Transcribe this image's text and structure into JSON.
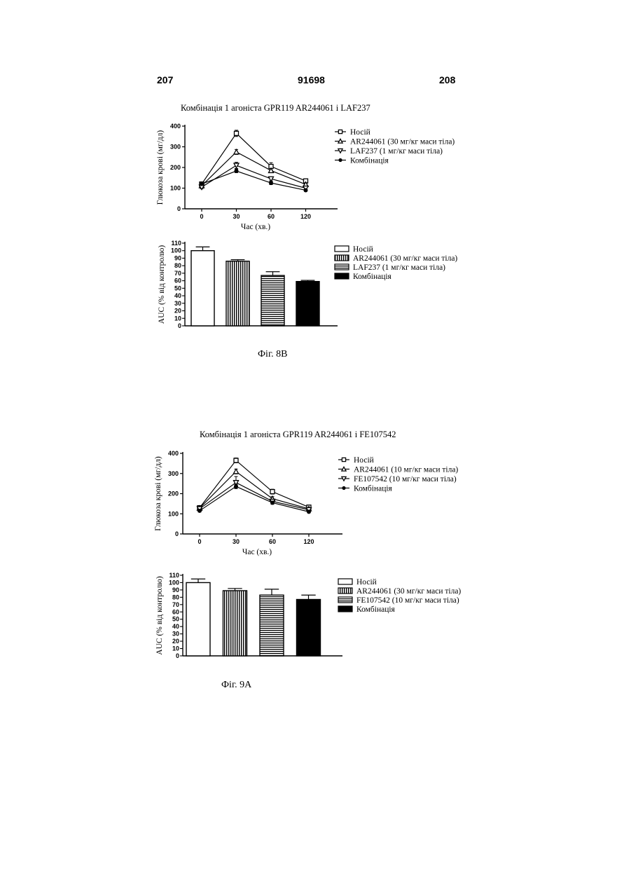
{
  "page_header": {
    "left": "207",
    "center": "91698",
    "right": "208"
  },
  "figures": [
    {
      "title": "Комбінація 1 агоніста GPR119 AR244061 і LAF237",
      "caption": "Фіг. 8B"
    },
    {
      "title": "Комбінація 1 агоніста GPR119 AR244061 і FE107542",
      "caption": "Фіг. 9A"
    }
  ],
  "chart_data": [
    {
      "type": "line",
      "xlabel": "Час (хв.)",
      "ylabel": "Глюкоза крові (мг/дл)",
      "x": [
        "0",
        "30",
        "60",
        "120"
      ],
      "yticks": [
        0,
        100,
        200,
        300,
        400
      ],
      "ylim": [
        0,
        400
      ],
      "legend_position": "right",
      "series": [
        {
          "name": "Носій",
          "marker": "square-open",
          "values": [
            120,
            365,
            205,
            135
          ],
          "errors": [
            8,
            15,
            18,
            8
          ]
        },
        {
          "name": "AR244061 (30 мг/кг маси тіла)",
          "marker": "triangle-up-open",
          "values": [
            112,
            275,
            185,
            118
          ],
          "errors": [
            8,
            12,
            10,
            8
          ]
        },
        {
          "name": "LAF237 (1 мг/кг маси тіла)",
          "marker": "triangle-down-open",
          "values": [
            105,
            210,
            145,
            100
          ],
          "errors": [
            8,
            15,
            10,
            6
          ]
        },
        {
          "name": "Комбінація",
          "marker": "circle-filled",
          "values": [
            120,
            183,
            125,
            90
          ],
          "errors": [
            6,
            8,
            8,
            5
          ]
        }
      ]
    },
    {
      "type": "bar",
      "ylabel": "AUC (% від контролю)",
      "categories": [
        "Носій",
        "AR244061 (30 мг/кг маси тіла)",
        "LAF237 (1 мг/кг маси тіла)",
        "Комбінація"
      ],
      "values": [
        100,
        86,
        67,
        59
      ],
      "errors": [
        5,
        2,
        5,
        1.5
      ],
      "fills": [
        "open",
        "vertical-stripes",
        "horizontal-stripes",
        "solid-black"
      ],
      "yticks": [
        0,
        10,
        20,
        30,
        40,
        50,
        60,
        70,
        80,
        90,
        100,
        110
      ],
      "ylim": [
        0,
        110
      ],
      "legend_position": "right"
    },
    {
      "type": "line",
      "xlabel": "Час (хв.)",
      "ylabel": "Глюкоза крові (мг/дл)",
      "x": [
        "0",
        "30",
        "60",
        "120"
      ],
      "yticks": [
        0,
        100,
        200,
        300,
        400
      ],
      "ylim": [
        0,
        400
      ],
      "legend_position": "right",
      "series": [
        {
          "name": "Носій",
          "marker": "square-open",
          "values": [
            130,
            365,
            210,
            133
          ],
          "errors": [
            8,
            12,
            12,
            6
          ]
        },
        {
          "name": "AR244061 (10 мг/кг маси тіла)",
          "marker": "triangle-up-open",
          "values": [
            128,
            310,
            175,
            125
          ],
          "errors": [
            8,
            12,
            10,
            6
          ]
        },
        {
          "name": "FE107542 (10 мг/кг маси тіла)",
          "marker": "triangle-down-open",
          "values": [
            125,
            255,
            162,
            120
          ],
          "errors": [
            8,
            30,
            10,
            6
          ]
        },
        {
          "name": "Комбінація",
          "marker": "circle-filled",
          "values": [
            115,
            236,
            155,
            110
          ],
          "errors": [
            6,
            10,
            8,
            5
          ]
        }
      ]
    },
    {
      "type": "bar",
      "ylabel": "AUC (% від контролю)",
      "categories": [
        "Носій",
        "AR244061 (30 мг/кг маси тіла)",
        "FE107542 (10 мг/кг маси тіла)",
        "Комбінація"
      ],
      "values": [
        100,
        89,
        83,
        77
      ],
      "errors": [
        5,
        3,
        8,
        6
      ],
      "fills": [
        "open",
        "vertical-stripes",
        "horizontal-stripes",
        "solid-black"
      ],
      "yticks": [
        0,
        10,
        20,
        30,
        40,
        50,
        60,
        70,
        80,
        90,
        100,
        110
      ],
      "ylim": [
        0,
        110
      ],
      "legend_position": "right"
    }
  ]
}
